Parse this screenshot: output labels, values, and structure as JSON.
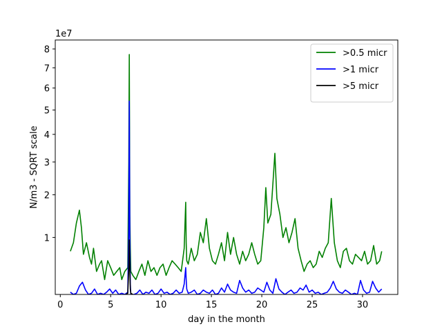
{
  "chart_data": {
    "type": "line",
    "xlabel": "day in the month",
    "ylabel": "N/m3 - SQRT scale",
    "y_scale": "sqrt",
    "y_multiplier_label": "1e7",
    "xlim": [
      -0.5,
      33.5
    ],
    "ylim": [
      0.2,
      8.5
    ],
    "x_ticks": [
      0,
      5,
      10,
      15,
      20,
      25,
      30
    ],
    "x_tick_labels": [
      "0",
      "5",
      "10",
      "15",
      "20",
      "25",
      "30"
    ],
    "y_ticks": [
      1,
      2,
      3,
      4,
      5,
      6,
      7,
      8
    ],
    "y_tick_labels": [
      "1",
      "2",
      "3",
      "4",
      "5",
      "6",
      "7",
      "8"
    ],
    "legend_position": "top-right",
    "grid": false,
    "series": [
      {
        "name": ">0.5 micr",
        "color": "#008000",
        "x": [
          1.0,
          1.3,
          1.6,
          1.9,
          2.1,
          2.3,
          2.6,
          2.9,
          3.1,
          3.3,
          3.6,
          3.9,
          4.1,
          4.4,
          4.7,
          5.0,
          5.3,
          5.6,
          5.9,
          6.1,
          6.4,
          6.7,
          6.8,
          6.85,
          6.9,
          6.95,
          7.0,
          7.2,
          7.5,
          7.8,
          8.1,
          8.4,
          8.7,
          9.0,
          9.3,
          9.6,
          9.9,
          10.2,
          10.5,
          10.8,
          11.1,
          11.4,
          11.7,
          12.0,
          12.3,
          12.45,
          12.5,
          12.55,
          12.7,
          13.0,
          13.3,
          13.6,
          13.9,
          14.2,
          14.5,
          14.8,
          15.1,
          15.4,
          15.7,
          16.0,
          16.3,
          16.6,
          16.9,
          17.2,
          17.5,
          17.8,
          18.1,
          18.4,
          18.7,
          19.0,
          19.3,
          19.6,
          19.9,
          20.2,
          20.4,
          20.6,
          20.9,
          21.1,
          21.3,
          21.5,
          21.8,
          22.1,
          22.4,
          22.7,
          23.0,
          23.3,
          23.6,
          23.9,
          24.2,
          24.5,
          24.8,
          25.1,
          25.4,
          25.7,
          26.0,
          26.3,
          26.6,
          26.9,
          27.2,
          27.5,
          27.8,
          28.1,
          28.4,
          28.7,
          29.0,
          29.3,
          29.6,
          29.9,
          30.2,
          30.5,
          30.8,
          31.1,
          31.4,
          31.7,
          31.9
        ],
        "values": [
          0.75,
          0.9,
          1.3,
          1.6,
          1.2,
          0.7,
          0.9,
          0.65,
          0.55,
          0.8,
          0.45,
          0.55,
          0.6,
          0.35,
          0.6,
          0.5,
          0.4,
          0.45,
          0.5,
          0.35,
          0.45,
          0.5,
          3.0,
          7.7,
          1.5,
          0.8,
          0.45,
          0.4,
          0.35,
          0.45,
          0.55,
          0.4,
          0.6,
          0.45,
          0.5,
          0.4,
          0.5,
          0.55,
          0.4,
          0.5,
          0.6,
          0.55,
          0.5,
          0.45,
          0.8,
          1.8,
          0.9,
          0.6,
          0.55,
          0.8,
          0.6,
          0.7,
          1.1,
          0.9,
          1.4,
          0.8,
          0.6,
          0.55,
          0.7,
          0.9,
          0.6,
          1.1,
          0.7,
          1.0,
          0.7,
          0.55,
          0.75,
          0.6,
          0.7,
          0.9,
          0.7,
          0.55,
          0.6,
          1.2,
          2.2,
          1.3,
          1.5,
          2.3,
          3.3,
          1.9,
          1.5,
          1.0,
          1.2,
          0.9,
          1.1,
          1.4,
          0.8,
          0.6,
          0.45,
          0.55,
          0.6,
          0.5,
          0.55,
          0.75,
          0.65,
          0.8,
          0.9,
          1.9,
          0.9,
          0.6,
          0.5,
          0.75,
          0.8,
          0.6,
          0.55,
          0.7,
          0.65,
          0.6,
          0.75,
          0.55,
          0.6,
          0.85,
          0.55,
          0.6,
          0.75
        ]
      },
      {
        "name": ">1 micr",
        "color": "#0000ff",
        "x": [
          1.0,
          1.3,
          1.6,
          1.9,
          2.2,
          2.5,
          2.8,
          3.1,
          3.4,
          3.7,
          4.0,
          4.3,
          4.6,
          4.9,
          5.2,
          5.5,
          5.8,
          6.1,
          6.4,
          6.7,
          6.8,
          6.85,
          6.9,
          6.95,
          7.0,
          7.3,
          7.6,
          7.9,
          8.2,
          8.5,
          8.8,
          9.1,
          9.4,
          9.7,
          10.0,
          10.3,
          10.6,
          10.9,
          11.2,
          11.5,
          11.8,
          12.1,
          12.3,
          12.45,
          12.5,
          12.55,
          12.7,
          13.0,
          13.3,
          13.6,
          13.9,
          14.2,
          14.5,
          14.8,
          15.1,
          15.4,
          15.7,
          16.0,
          16.3,
          16.6,
          16.9,
          17.2,
          17.5,
          17.8,
          18.1,
          18.4,
          18.7,
          19.0,
          19.3,
          19.6,
          19.9,
          20.2,
          20.5,
          20.8,
          21.1,
          21.4,
          21.7,
          22.0,
          22.3,
          22.6,
          22.9,
          23.2,
          23.5,
          23.8,
          24.1,
          24.4,
          24.7,
          25.0,
          25.3,
          25.6,
          25.9,
          26.2,
          26.5,
          26.8,
          27.1,
          27.4,
          27.7,
          28.0,
          28.3,
          28.6,
          28.9,
          29.2,
          29.5,
          29.8,
          30.1,
          30.4,
          30.7,
          31.0,
          31.3,
          31.6,
          31.9
        ],
        "values": [
          0.22,
          0.2,
          0.21,
          0.28,
          0.32,
          0.24,
          0.2,
          0.21,
          0.25,
          0.2,
          0.21,
          0.2,
          0.22,
          0.25,
          0.21,
          0.24,
          0.2,
          0.21,
          0.2,
          0.22,
          1.2,
          5.4,
          1.0,
          0.3,
          0.2,
          0.2,
          0.21,
          0.24,
          0.2,
          0.22,
          0.21,
          0.24,
          0.2,
          0.21,
          0.25,
          0.21,
          0.22,
          0.2,
          0.21,
          0.24,
          0.21,
          0.22,
          0.3,
          0.5,
          0.35,
          0.25,
          0.21,
          0.22,
          0.24,
          0.2,
          0.21,
          0.24,
          0.22,
          0.21,
          0.24,
          0.2,
          0.21,
          0.26,
          0.22,
          0.3,
          0.24,
          0.22,
          0.21,
          0.34,
          0.26,
          0.22,
          0.24,
          0.21,
          0.22,
          0.26,
          0.24,
          0.22,
          0.32,
          0.24,
          0.21,
          0.36,
          0.25,
          0.22,
          0.2,
          0.22,
          0.24,
          0.21,
          0.22,
          0.26,
          0.24,
          0.29,
          0.22,
          0.24,
          0.21,
          0.22,
          0.2,
          0.21,
          0.22,
          0.26,
          0.33,
          0.25,
          0.22,
          0.21,
          0.24,
          0.22,
          0.2,
          0.21,
          0.2,
          0.34,
          0.24,
          0.21,
          0.22,
          0.33,
          0.26,
          0.22,
          0.25
        ]
      },
      {
        "name": ">5 micr",
        "color": "#000000",
        "x": [
          6.5,
          6.7,
          6.8,
          6.85,
          6.9,
          6.95,
          7.0,
          7.2
        ],
        "values": [
          0.2,
          0.21,
          0.5,
          0.95,
          0.45,
          0.25,
          0.21,
          0.2
        ]
      }
    ]
  }
}
